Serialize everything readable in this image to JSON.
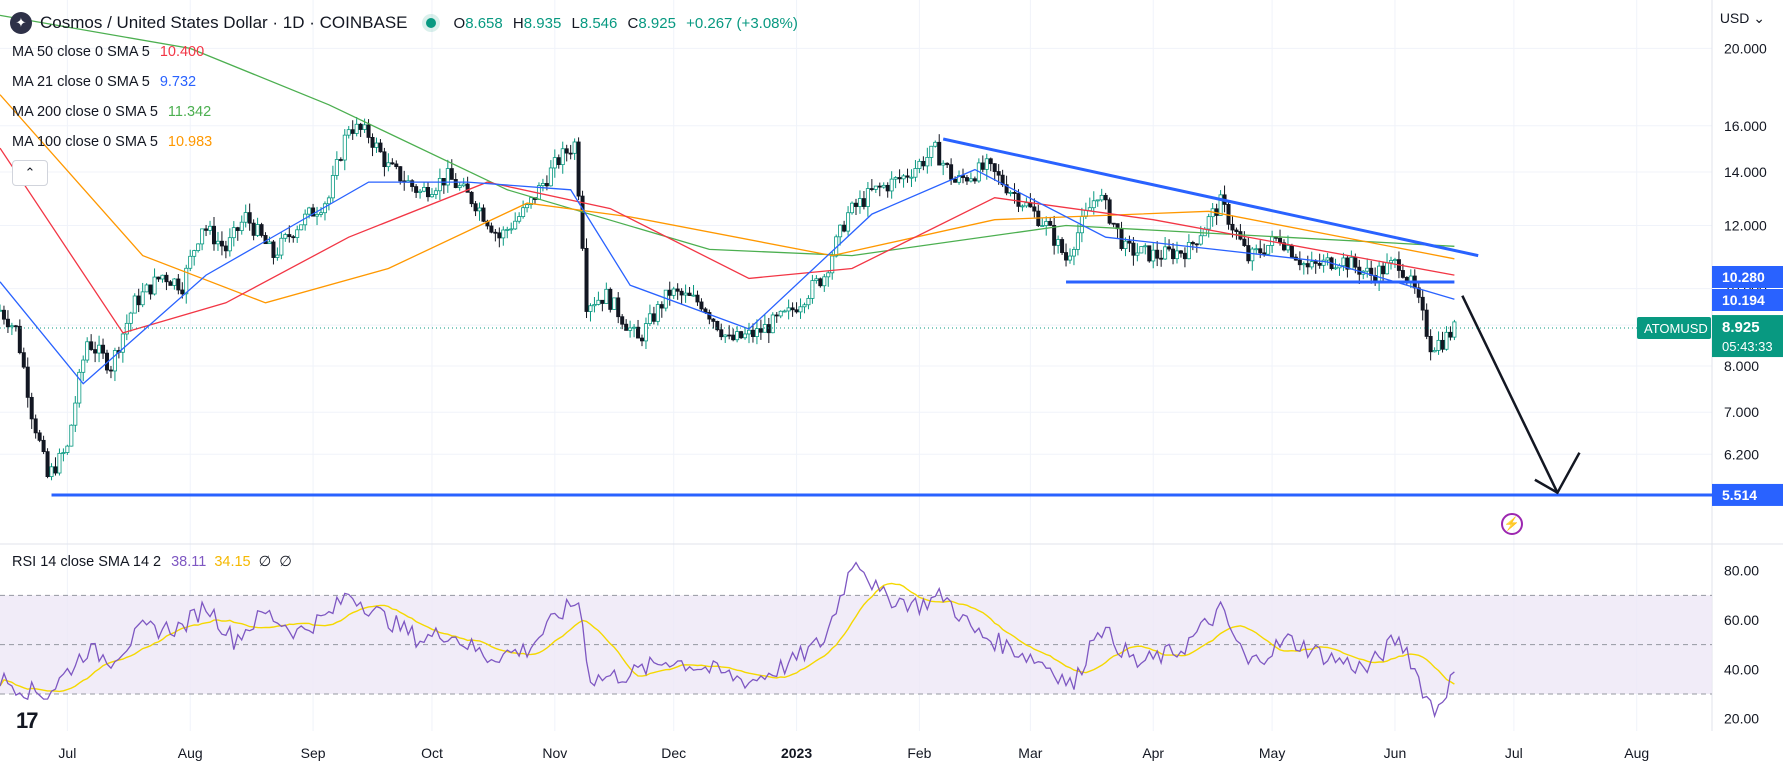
{
  "header": {
    "title": "Cosmos / United States Dollar · 1D · COINBASE",
    "open_label": "O",
    "open": "8.658",
    "high_label": "H",
    "high": "8.935",
    "low_label": "L",
    "low": "8.546",
    "close_label": "C",
    "close": "8.925",
    "change": "+0.267 (+3.08%)"
  },
  "currency": "USD",
  "indicators": [
    {
      "label": "MA 50 close 0 SMA 5",
      "value": "10.400",
      "color": "#f23645"
    },
    {
      "label": "MA 21 close 0 SMA 5",
      "value": "9.732",
      "color": "#2962ff"
    },
    {
      "label": "MA 200 close 0 SMA 5",
      "value": "11.342",
      "color": "#4caf50"
    },
    {
      "label": "MA 100 close 0 SMA 5",
      "value": "10.983",
      "color": "#ff9800"
    }
  ],
  "rsi": {
    "label": "RSI 14 close SMA 14 2",
    "value": "38.11",
    "sma": "34.15",
    "extra1": "∅",
    "extra2": "∅"
  },
  "price_tag": {
    "symbol": "ATOMUSD",
    "price": "8.925",
    "countdown": "05:43:33"
  },
  "level_labels": [
    "10.280",
    "10.194",
    "5.514"
  ],
  "colors": {
    "up": "#089981",
    "down": "#131722",
    "trendline": "#2962ff",
    "rsi": "#7e57c2",
    "rsi_sma": "#f5d800",
    "rsi_band": "#ede7f6"
  },
  "chart_data": {
    "type": "candlestick",
    "symbol": "ATOMUSD",
    "scale": "log",
    "ylim": [
      4.8,
      23
    ],
    "price_ticks": [
      20.0,
      16.0,
      14.0,
      12.0,
      10.0,
      9.0,
      8.0,
      7.0,
      6.2
    ],
    "price_tick_labels": [
      "20.000",
      "16.000",
      "14.000",
      "12.000",
      "10.000",
      "9.000",
      "8.000",
      "7.000",
      "6.200"
    ],
    "rsi_ticks": [
      80,
      60,
      40,
      20
    ],
    "rsi_tick_labels": [
      "80.00",
      "60.00",
      "40.00",
      "20.00"
    ],
    "rsi_band": [
      30,
      70
    ],
    "x_labels": [
      "Jul",
      "Aug",
      "Sep",
      "Oct",
      "Nov",
      "Dec",
      "2023",
      "Feb",
      "Mar",
      "Apr",
      "May",
      "Jun",
      "Jul",
      "Aug"
    ],
    "x_start": "2022-06-14",
    "x_end": "2023-08-20",
    "x_label_dates": [
      "2022-07-01",
      "2022-08-01",
      "2022-09-01",
      "2022-10-01",
      "2022-11-01",
      "2022-12-01",
      "2023-01-01",
      "2023-02-01",
      "2023-03-01",
      "2023-04-01",
      "2023-05-01",
      "2023-06-01",
      "2023-07-01",
      "2023-08-01"
    ],
    "price_path": [
      [
        "2022-06-14",
        9.4
      ],
      [
        "2022-06-18",
        8.9
      ],
      [
        "2022-06-22",
        7.0
      ],
      [
        "2022-06-26",
        5.8
      ],
      [
        "2022-07-01",
        6.3
      ],
      [
        "2022-07-06",
        8.6
      ],
      [
        "2022-07-12",
        8.0
      ],
      [
        "2022-07-18",
        9.6
      ],
      [
        "2022-07-25",
        10.4
      ],
      [
        "2022-07-30",
        10.1
      ],
      [
        "2022-08-04",
        12.0
      ],
      [
        "2022-08-10",
        11.2
      ],
      [
        "2022-08-15",
        12.3
      ],
      [
        "2022-08-22",
        11.0
      ],
      [
        "2022-08-28",
        12.0
      ],
      [
        "2022-09-05",
        13.0
      ],
      [
        "2022-09-10",
        16.0
      ],
      [
        "2022-09-15",
        15.6
      ],
      [
        "2022-09-20",
        14.2
      ],
      [
        "2022-09-28",
        13.2
      ],
      [
        "2022-10-05",
        13.8
      ],
      [
        "2022-10-12",
        12.8
      ],
      [
        "2022-10-18",
        11.6
      ],
      [
        "2022-10-25",
        12.6
      ],
      [
        "2022-11-02",
        14.5
      ],
      [
        "2022-11-06",
        15.2
      ],
      [
        "2022-11-09",
        9.6
      ],
      [
        "2022-11-14",
        9.8
      ],
      [
        "2022-11-22",
        8.6
      ],
      [
        "2022-11-30",
        9.9
      ],
      [
        "2022-12-08",
        9.6
      ],
      [
        "2022-12-15",
        8.6
      ],
      [
        "2022-12-22",
        8.8
      ],
      [
        "2022-12-30",
        9.3
      ],
      [
        "2023-01-08",
        10.4
      ],
      [
        "2023-01-14",
        12.4
      ],
      [
        "2023-01-20",
        13.2
      ],
      [
        "2023-01-28",
        13.8
      ],
      [
        "2023-02-05",
        14.9
      ],
      [
        "2023-02-10",
        13.6
      ],
      [
        "2023-02-18",
        14.2
      ],
      [
        "2023-02-26",
        13.0
      ],
      [
        "2023-03-05",
        12.0
      ],
      [
        "2023-03-10",
        10.9
      ],
      [
        "2023-03-18",
        13.2
      ],
      [
        "2023-03-25",
        11.2
      ],
      [
        "2023-04-02",
        11.0
      ],
      [
        "2023-04-10",
        11.2
      ],
      [
        "2023-04-18",
        12.8
      ],
      [
        "2023-04-25",
        10.9
      ],
      [
        "2023-05-03",
        11.6
      ],
      [
        "2023-05-10",
        10.6
      ],
      [
        "2023-05-18",
        10.9
      ],
      [
        "2023-05-26",
        10.4
      ],
      [
        "2023-06-02",
        10.8
      ],
      [
        "2023-06-06",
        9.9
      ],
      [
        "2023-06-10",
        8.5
      ],
      [
        "2023-06-13",
        8.6
      ],
      [
        "2023-06-16",
        8.9
      ]
    ],
    "rsi_path": [
      [
        "2022-06-14",
        36
      ],
      [
        "2022-06-22",
        31
      ],
      [
        "2022-06-26",
        30
      ],
      [
        "2022-07-06",
        48
      ],
      [
        "2022-07-12",
        44
      ],
      [
        "2022-07-20",
        56
      ],
      [
        "2022-07-30",
        57
      ],
      [
        "2022-08-05",
        66
      ],
      [
        "2022-08-12",
        52
      ],
      [
        "2022-08-20",
        63
      ],
      [
        "2022-08-28",
        55
      ],
      [
        "2022-09-05",
        62
      ],
      [
        "2022-09-10",
        71
      ],
      [
        "2022-09-18",
        62
      ],
      [
        "2022-09-28",
        52
      ],
      [
        "2022-10-05",
        55
      ],
      [
        "2022-10-15",
        45
      ],
      [
        "2022-10-25",
        48
      ],
      [
        "2022-11-02",
        62
      ],
      [
        "2022-11-07",
        68
      ],
      [
        "2022-11-10",
        36
      ],
      [
        "2022-11-20",
        38
      ],
      [
        "2022-11-30",
        44
      ],
      [
        "2022-12-10",
        40
      ],
      [
        "2022-12-20",
        35
      ],
      [
        "2022-12-30",
        42
      ],
      [
        "2023-01-08",
        52
      ],
      [
        "2023-01-14",
        78
      ],
      [
        "2023-01-16",
        86
      ],
      [
        "2023-01-22",
        70
      ],
      [
        "2023-02-01",
        66
      ],
      [
        "2023-02-07",
        70
      ],
      [
        "2023-02-15",
        55
      ],
      [
        "2023-02-25",
        48
      ],
      [
        "2023-03-05",
        42
      ],
      [
        "2023-03-12",
        33
      ],
      [
        "2023-03-18",
        58
      ],
      [
        "2023-03-28",
        42
      ],
      [
        "2023-04-08",
        48
      ],
      [
        "2023-04-18",
        64
      ],
      [
        "2023-04-25",
        42
      ],
      [
        "2023-05-05",
        52
      ],
      [
        "2023-05-15",
        45
      ],
      [
        "2023-05-25",
        40
      ],
      [
        "2023-06-01",
        52
      ],
      [
        "2023-06-04",
        48
      ],
      [
        "2023-06-08",
        32
      ],
      [
        "2023-06-11",
        23
      ],
      [
        "2023-06-14",
        32
      ],
      [
        "2023-06-16",
        38
      ]
    ],
    "moving_averages": [
      {
        "label": "MA 200",
        "color": "#4caf50",
        "points": [
          [
            "2022-06-14",
            22
          ],
          [
            "2022-08-01",
            20
          ],
          [
            "2022-09-05",
            17
          ],
          [
            "2022-10-20",
            13.3
          ],
          [
            "2022-12-10",
            11.2
          ],
          [
            "2023-01-15",
            11.0
          ],
          [
            "2023-03-10",
            12.0
          ],
          [
            "2023-06-16",
            11.3
          ]
        ]
      },
      {
        "label": "MA 100",
        "color": "#ff9800",
        "points": [
          [
            "2022-06-14",
            17.5
          ],
          [
            "2022-07-20",
            11.0
          ],
          [
            "2022-08-20",
            9.6
          ],
          [
            "2022-09-20",
            10.6
          ],
          [
            "2022-10-25",
            12.8
          ],
          [
            "2022-11-20",
            12.3
          ],
          [
            "2023-01-10",
            11.0
          ],
          [
            "2023-02-20",
            12.2
          ],
          [
            "2023-04-15",
            12.5
          ],
          [
            "2023-06-16",
            10.9
          ]
        ]
      },
      {
        "label": "MA 50",
        "color": "#f23645",
        "points": [
          [
            "2022-06-14",
            15.0
          ],
          [
            "2022-07-15",
            8.8
          ],
          [
            "2022-08-10",
            9.6
          ],
          [
            "2022-09-10",
            11.6
          ],
          [
            "2022-10-15",
            13.6
          ],
          [
            "2022-11-15",
            12.6
          ],
          [
            "2022-12-20",
            10.3
          ],
          [
            "2023-01-15",
            10.6
          ],
          [
            "2023-02-20",
            13.0
          ],
          [
            "2023-04-01",
            12.2
          ],
          [
            "2023-06-16",
            10.4
          ]
        ]
      },
      {
        "label": "MA 21",
        "color": "#2962ff",
        "points": [
          [
            "2022-06-14",
            10.2
          ],
          [
            "2022-07-05",
            7.6
          ],
          [
            "2022-08-05",
            10.4
          ],
          [
            "2022-09-15",
            13.6
          ],
          [
            "2022-10-10",
            13.6
          ],
          [
            "2022-11-05",
            13.3
          ],
          [
            "2022-11-20",
            10.1
          ],
          [
            "2022-12-20",
            8.9
          ],
          [
            "2023-01-20",
            12.4
          ],
          [
            "2023-02-15",
            14.1
          ],
          [
            "2023-03-20",
            11.6
          ],
          [
            "2023-05-15",
            10.8
          ],
          [
            "2023-06-16",
            9.7
          ]
        ]
      }
    ],
    "annotations": [
      {
        "type": "trendline",
        "from": [
          "2023-02-07",
          15.4
        ],
        "to": [
          "2023-06-22",
          11.0
        ]
      },
      {
        "type": "hline",
        "from": "2023-03-10",
        "to": "2023-06-16",
        "price": 10.194
      },
      {
        "type": "hline",
        "from": "2022-06-27",
        "to": "2023-08-20",
        "price": 5.514
      },
      {
        "type": "arrow",
        "from": [
          "2023-06-18",
          9.8
        ],
        "to": [
          "2023-07-12",
          5.55
        ]
      }
    ]
  }
}
